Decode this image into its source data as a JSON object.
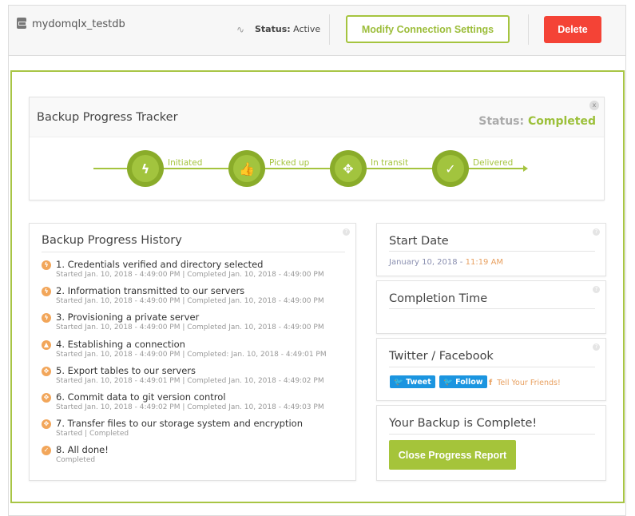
{
  "header": {
    "db_name": "mydomqlx_testdb",
    "status_label": "Status:",
    "status_value": "Active",
    "modify_label": "Modify Connection Settings",
    "delete_label": "Delete"
  },
  "tracker": {
    "title": "Backup Progress Tracker",
    "status_label": "Status:",
    "status_value": "Completed",
    "close": "x",
    "steps": [
      {
        "label": "Initiated",
        "icon": "lightning-icon",
        "glyph": "ϟ"
      },
      {
        "label": "Picked up",
        "icon": "thumbs-up-icon",
        "glyph": "👍"
      },
      {
        "label": "In transit",
        "icon": "move-arrows-icon",
        "glyph": "✥"
      },
      {
        "label": "Delivered",
        "icon": "check-icon",
        "glyph": "✓"
      }
    ]
  },
  "history": {
    "title": "Backup Progress History",
    "items": [
      {
        "title": "1. Credentials verified and directory selected",
        "sub": "Started Jan. 10, 2018 - 4:49:00 PM | Completed Jan. 10, 2018 - 4:49:00 PM",
        "icon": "lightning-icon",
        "glyph": "ϟ"
      },
      {
        "title": "2. Information transmitted to our servers",
        "sub": "Started Jan. 10, 2018 - 4:49:00 PM | Completed Jan. 10, 2018 - 4:49:00 PM",
        "icon": "lightning-icon",
        "glyph": "ϟ"
      },
      {
        "title": "3. Provisioning a private server",
        "sub": "Started Jan. 10, 2018 - 4:49:00 PM | Completed Jan. 10, 2018 - 4:49:00 PM",
        "icon": "lightning-icon",
        "glyph": "ϟ"
      },
      {
        "title": "4. Establishing a connection",
        "sub": "Started Jan. 10, 2018 - 4:49:00 PM | Completed: Jan. 10, 2018 - 4:49:01 PM",
        "icon": "thumbs-up-icon",
        "glyph": "▲"
      },
      {
        "title": "5. Export tables to our servers",
        "sub": "Started Jan. 10, 2018 - 4:49:01 PM | Completed Jan. 10, 2018 - 4:49:02 PM",
        "icon": "move-arrows-icon",
        "glyph": "✥"
      },
      {
        "title": "6. Commit data to git version control",
        "sub": "Started Jan. 10, 2018 - 4:49:02 PM | Completed Jan. 10, 2018 - 4:49:03 PM",
        "icon": "move-arrows-icon",
        "glyph": "✥"
      },
      {
        "title": "7. Transfer files to our storage system and encryption",
        "sub": "Started | Completed",
        "icon": "move-arrows-icon",
        "glyph": "✥"
      },
      {
        "title": "8. All done!",
        "sub": "Completed",
        "icon": "check-icon",
        "glyph": "✓"
      }
    ]
  },
  "start_date": {
    "title": "Start Date",
    "date": "January 10, 2018 - ",
    "time": "11:19 AM"
  },
  "completion": {
    "title": "Completion Time"
  },
  "social": {
    "title": "Twitter / Facebook",
    "tweet": "Tweet",
    "follow": "Follow",
    "friends": "Tell Your Friends!"
  },
  "complete": {
    "title": "Your Backup is Complete!",
    "button": "Close Progress Report"
  },
  "help_glyph": "?",
  "colors": {
    "accent": "#a5c43f",
    "danger": "#f44336",
    "orange": "#f2a65a",
    "twitter": "#1b95e0"
  }
}
